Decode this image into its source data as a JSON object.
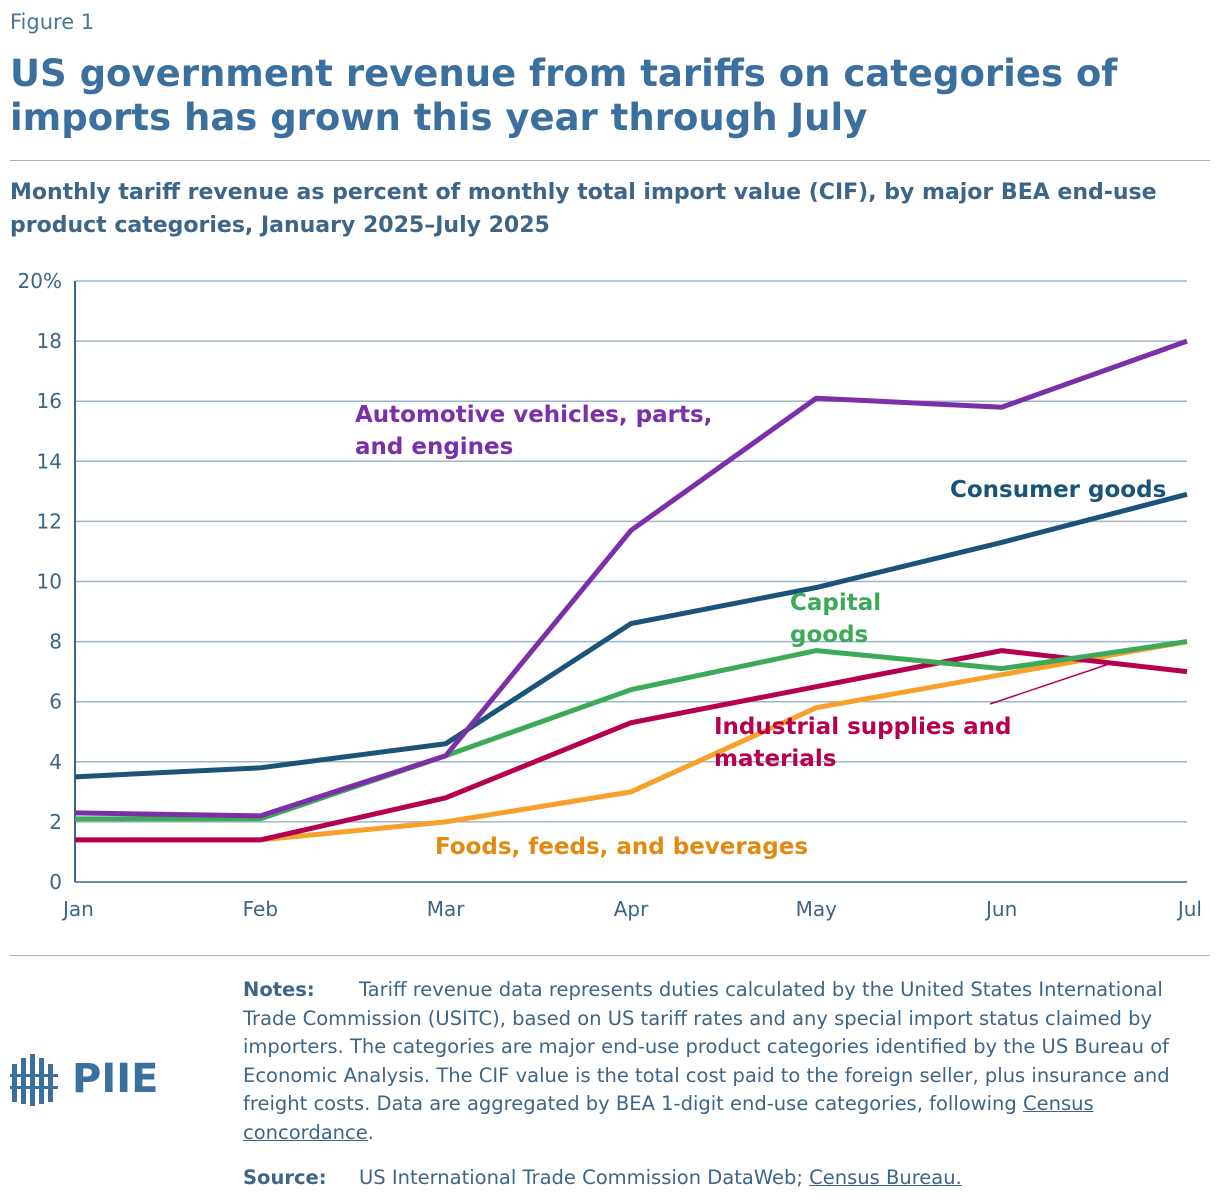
{
  "figure_label": "Figure 1",
  "title": "US government revenue from tariffs on categories of imports has grown this year through July",
  "subtitle": "Monthly tariff revenue as percent of monthly total import value (CIF), by major BEA end-use product categories, January 2025–July 2025",
  "chart_data": {
    "type": "line",
    "categories": [
      "Jan",
      "Feb",
      "Mar",
      "Apr",
      "May",
      "Jun",
      "Jul"
    ],
    "ylim": [
      0,
      20
    ],
    "yticks": [
      0,
      2,
      4,
      6,
      8,
      10,
      12,
      14,
      16,
      18,
      {
        "value": 20,
        "label": "20%"
      }
    ],
    "grid": true,
    "series": [
      {
        "name": "Consumer goods",
        "color": "#1b5478",
        "values": [
          3.5,
          3.8,
          4.6,
          8.6,
          9.8,
          11.3,
          12.9
        ]
      },
      {
        "name": "Automotive vehicles, parts, and engines",
        "color": "#7b2fa8",
        "values": [
          2.3,
          2.2,
          4.2,
          11.7,
          16.1,
          15.8,
          18.0
        ]
      },
      {
        "name": "Capital goods",
        "color": "#3daa5a",
        "values": [
          2.1,
          2.1,
          4.2,
          6.4,
          7.7,
          7.1,
          8.0
        ]
      },
      {
        "name": "Industrial supplies and materials",
        "color": "#b5004f",
        "values": [
          1.4,
          1.4,
          2.8,
          5.3,
          6.5,
          7.7,
          7.0
        ]
      },
      {
        "name": "Foods, feeds, and beverages",
        "color": "#f7a02b",
        "values": [
          1.4,
          1.4,
          2.0,
          3.0,
          5.8,
          6.9,
          8.0
        ]
      }
    ]
  },
  "notes": {
    "label": "Notes:",
    "text": "Tariff revenue data represents duties calculated by the United States International Trade Commission (USITC), based on US tariff rates and any special import status claimed by importers. The categories are major end-use product categories identified by the US Bureau of Economic Analysis. The CIF value is the total cost paid to the foreign seller, plus insurance and freight costs. Data are aggregated by BEA 1-digit end-use categories, following ",
    "link": "Census concordance",
    "end": "."
  },
  "source": {
    "label": "Source:",
    "text": "US International Trade Commission DataWeb; ",
    "link": "Census Bureau."
  },
  "logo": "PIIE"
}
